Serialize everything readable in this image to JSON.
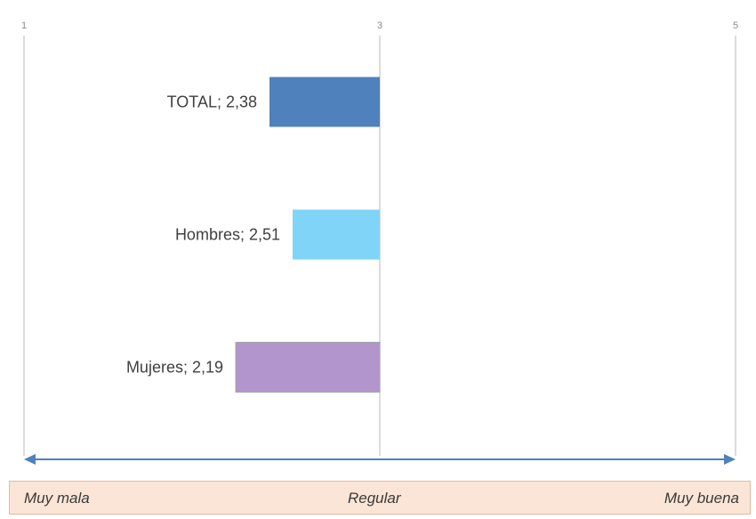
{
  "chart_data": {
    "type": "bar",
    "orientation": "horizontal",
    "xlim": [
      1,
      5
    ],
    "ticks": [
      1,
      3,
      5
    ],
    "tick_labels": [
      "1",
      "3",
      "5"
    ],
    "baseline": 3,
    "categories": [
      "TOTAL",
      "Hombres",
      "Mujeres"
    ],
    "values": [
      2.38,
      2.51,
      2.19
    ],
    "data_labels": [
      "TOTAL; 2,38",
      "Hombres; 2,51",
      "Mujeres; 2,19"
    ],
    "colors": [
      "#4f81bd",
      "#7fd4f7",
      "#b395cd"
    ],
    "grid": true
  },
  "scale": {
    "left": "Muy mala",
    "middle": "Regular",
    "right": "Muy buena"
  },
  "colors": {
    "axis_arrow": "#4f81bd",
    "gridline": "#d0d0d0",
    "scale_background": "#fbe5d6"
  }
}
